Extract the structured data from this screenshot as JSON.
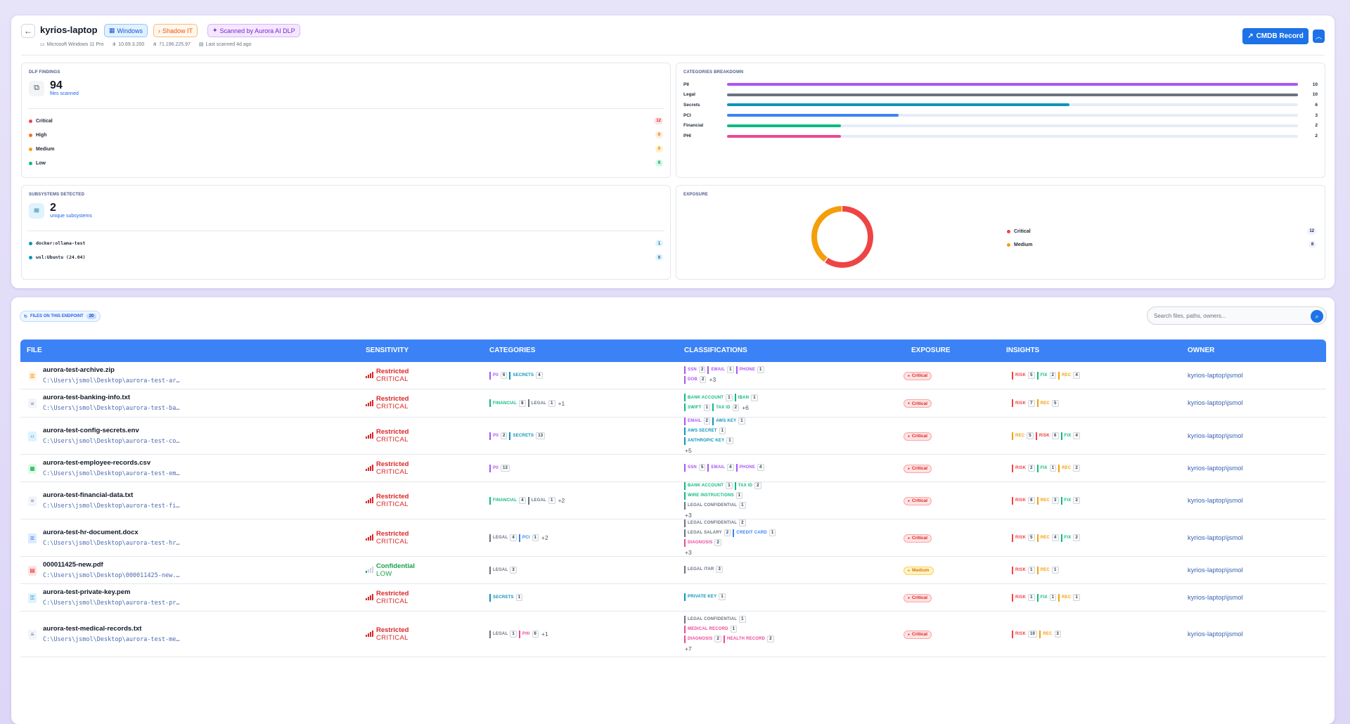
{
  "header": {
    "device_name": "kyrios-laptop",
    "badges": {
      "os": "Windows",
      "shadow": "Shadow IT",
      "scanned": "Scanned by Aurora AI DLP"
    },
    "meta": {
      "os_full": "Microsoft Windows 11 Pro",
      "ip1": "10.69.3.200",
      "ip2": "71.196.225.97",
      "last_scanned": "Last scanned 4d ago"
    },
    "cmdb_label": "CMDB Record"
  },
  "dlp": {
    "title": "DLP FINDINGS",
    "count": "94",
    "sub": "files scanned",
    "rows": [
      {
        "label": "Critical",
        "value": "12",
        "color": "#ef4444"
      },
      {
        "label": "High",
        "value": "0",
        "color": "#f97316"
      },
      {
        "label": "Medium",
        "value": "0",
        "color": "#f59e0b"
      },
      {
        "label": "Low",
        "value": "8",
        "color": "#10b981"
      }
    ]
  },
  "categories": {
    "title": "CATEGORIES BREAKDOWN",
    "max": 10,
    "rows": [
      {
        "label": "PII",
        "value": "10",
        "color": "#a855f7"
      },
      {
        "label": "Legal",
        "value": "10",
        "color": "#6b7280"
      },
      {
        "label": "Secrets",
        "value": "6",
        "color": "#0e95b8"
      },
      {
        "label": "PCI",
        "value": "3",
        "color": "#3b82f6"
      },
      {
        "label": "Financial",
        "value": "2",
        "color": "#10b981"
      },
      {
        "label": "PHI",
        "value": "2",
        "color": "#ec4899"
      }
    ]
  },
  "subsystems": {
    "title": "SUBSYSTEMS DETECTED",
    "count": "2",
    "sub": "unique subsystems",
    "rows": [
      {
        "label": "docker:ollama-test",
        "value": "1"
      },
      {
        "label": "wsl:Ubuntu (24.04)",
        "value": "0"
      }
    ]
  },
  "exposure": {
    "title": "EXPOSURE",
    "segments": [
      {
        "label": "Critical",
        "value": "12",
        "color": "#ef4444"
      },
      {
        "label": "Medium",
        "value": "8",
        "color": "#f59e0b"
      }
    ]
  },
  "files": {
    "badge": "FILES ON THIS ENDPOINT",
    "count": "20",
    "search_placeholder": "Search files, paths, owners...",
    "columns": [
      "FILE",
      "SENSITIVITY",
      "CATEGORIES",
      "CLASSIFICATIONS",
      "EXPOSURE",
      "INSIGHTS",
      "OWNER"
    ],
    "rows": [
      {
        "icon": "archive",
        "name": "aurora-test-archive.zip",
        "path": "C:\\Users\\jsmol\\Desktop\\aurora-test-ar…",
        "level": "Restricted",
        "grade": "CRITICAL",
        "cats": [
          {
            "l": "PII",
            "n": "6"
          },
          {
            "l": "SECRETS",
            "n": "4"
          }
        ],
        "cats_more": "",
        "cls": [
          [
            {
              "l": "SSN",
              "n": "2"
            },
            {
              "l": "EMAIL",
              "n": "1"
            },
            {
              "l": "PHONE",
              "n": "1"
            }
          ],
          [
            {
              "l": "DOB",
              "n": "2"
            }
          ]
        ],
        "cls_more": "+3",
        "exposure": "Critical",
        "insights": [
          {
            "l": "RISK",
            "n": "5"
          },
          {
            "l": "FIX",
            "n": "2"
          },
          {
            "l": "REC",
            "n": "4"
          }
        ],
        "owner": "kyrios-laptop\\jsmol"
      },
      {
        "icon": "text",
        "name": "aurora-test-banking-info.txt",
        "path": "C:\\Users\\jsmol\\Desktop\\aurora-test-ba…",
        "level": "Restricted",
        "grade": "CRITICAL",
        "cats": [
          {
            "l": "FINANCIAL",
            "n": "8"
          },
          {
            "l": "LEGAL",
            "n": "1"
          }
        ],
        "cats_more": "+1",
        "cls": [
          [
            {
              "l": "BANK ACCOUNT",
              "n": "1"
            },
            {
              "l": "IBAN",
              "n": "1"
            }
          ],
          [
            {
              "l": "SWIFT",
              "n": "1"
            },
            {
              "l": "TAX ID",
              "n": "2"
            }
          ]
        ],
        "cls_more": "+6",
        "exposure": "Critical",
        "insights": [
          {
            "l": "RISK",
            "n": "7"
          },
          {
            "l": "REC",
            "n": "5"
          }
        ],
        "owner": "kyrios-laptop\\jsmol"
      },
      {
        "icon": "code",
        "name": "aurora-test-config-secrets.env",
        "path": "C:\\Users\\jsmol\\Desktop\\aurora-test-co…",
        "level": "Restricted",
        "grade": "CRITICAL",
        "cats": [
          {
            "l": "PII",
            "n": "2"
          },
          {
            "l": "SECRETS",
            "n": "13"
          }
        ],
        "cats_more": "",
        "cls": [
          [
            {
              "l": "EMAIL",
              "n": "2"
            },
            {
              "l": "AWS KEY",
              "n": "1"
            }
          ],
          [
            {
              "l": "AWS SECRET",
              "n": "1"
            }
          ],
          [
            {
              "l": "ANTHROPIC KEY",
              "n": "1"
            }
          ]
        ],
        "cls_more": "+5",
        "exposure": "Critical",
        "insights": [
          {
            "l": "REC",
            "n": "5"
          },
          {
            "l": "RISK",
            "n": "6"
          },
          {
            "l": "FIX",
            "n": "4"
          }
        ],
        "owner": "kyrios-laptop\\jsmol"
      },
      {
        "icon": "sheet",
        "name": "aurora-test-employee-records.csv",
        "path": "C:\\Users\\jsmol\\Desktop\\aurora-test-em…",
        "level": "Restricted",
        "grade": "CRITICAL",
        "cats": [
          {
            "l": "PII",
            "n": "13"
          }
        ],
        "cats_more": "",
        "cls": [
          [
            {
              "l": "SSN",
              "n": "5"
            },
            {
              "l": "EMAIL",
              "n": "4"
            },
            {
              "l": "PHONE",
              "n": "4"
            }
          ]
        ],
        "cls_more": "",
        "exposure": "Critical",
        "insights": [
          {
            "l": "RISK",
            "n": "2"
          },
          {
            "l": "FIX",
            "n": "1"
          },
          {
            "l": "REC",
            "n": "2"
          }
        ],
        "owner": "kyrios-laptop\\jsmol"
      },
      {
        "icon": "text",
        "name": "aurora-test-financial-data.txt",
        "path": "C:\\Users\\jsmol\\Desktop\\aurora-test-fi…",
        "level": "Restricted",
        "grade": "CRITICAL",
        "cats": [
          {
            "l": "FINANCIAL",
            "n": "4"
          },
          {
            "l": "LEGAL",
            "n": "1"
          }
        ],
        "cats_more": "+2",
        "cls": [
          [
            {
              "l": "BANK ACCOUNT",
              "n": "1"
            },
            {
              "l": "TAX ID",
              "n": "2"
            }
          ],
          [
            {
              "l": "WIRE INSTRUCTIONS",
              "n": "1"
            }
          ],
          [
            {
              "l": "LEGAL CONFIDENTIAL",
              "n": "1"
            }
          ]
        ],
        "cls_more": "+3",
        "exposure": "Critical",
        "insights": [
          {
            "l": "RISK",
            "n": "6"
          },
          {
            "l": "REC",
            "n": "3"
          },
          {
            "l": "FIX",
            "n": "2"
          }
        ],
        "owner": "kyrios-laptop\\jsmol"
      },
      {
        "icon": "doc",
        "name": "aurora-test-hr-document.docx",
        "path": "C:\\Users\\jsmol\\Desktop\\aurora-test-hr…",
        "level": "Restricted",
        "grade": "CRITICAL",
        "cats": [
          {
            "l": "LEGAL",
            "n": "4"
          },
          {
            "l": "PCI",
            "n": "1"
          }
        ],
        "cats_more": "+2",
        "cls": [
          [
            {
              "l": "LEGAL CONFIDENTIAL",
              "n": "2"
            }
          ],
          [
            {
              "l": "LEGAL SALARY",
              "n": "2"
            },
            {
              "l": "CREDIT CARD",
              "n": "1"
            }
          ],
          [
            {
              "l": "DIAGNOSIS",
              "n": "2"
            }
          ]
        ],
        "cls_more": "+3",
        "exposure": "Critical",
        "insights": [
          {
            "l": "RISK",
            "n": "5"
          },
          {
            "l": "REC",
            "n": "4"
          },
          {
            "l": "FIX",
            "n": "2"
          }
        ],
        "owner": "kyrios-laptop\\jsmol"
      },
      {
        "icon": "pdf",
        "name": "000011425-new.pdf",
        "path": "C:\\Users\\jsmol\\Desktop\\000011425-new.…",
        "level": "Confidential",
        "grade": "LOW",
        "cats": [
          {
            "l": "LEGAL",
            "n": "3"
          }
        ],
        "cats_more": "",
        "cls": [
          [
            {
              "l": "LEGAL ITAR",
              "n": "3"
            }
          ]
        ],
        "cls_more": "",
        "exposure": "Medium",
        "insights": [
          {
            "l": "RISK",
            "n": "1"
          },
          {
            "l": "REC",
            "n": "1"
          }
        ],
        "owner": "kyrios-laptop\\jsmol"
      },
      {
        "icon": "key",
        "name": "aurora-test-private-key.pem",
        "path": "C:\\Users\\jsmol\\Desktop\\aurora-test-pr…",
        "level": "Restricted",
        "grade": "CRITICAL",
        "cats": [
          {
            "l": "SECRETS",
            "n": "1"
          }
        ],
        "cats_more": "",
        "cls": [
          [
            {
              "l": "PRIVATE KEY",
              "n": "1"
            }
          ]
        ],
        "cls_more": "",
        "exposure": "Critical",
        "insights": [
          {
            "l": "RISK",
            "n": "1"
          },
          {
            "l": "FIX",
            "n": "1"
          },
          {
            "l": "REC",
            "n": "1"
          }
        ],
        "owner": "kyrios-laptop\\jsmol"
      },
      {
        "icon": "text",
        "name": "aurora-test-medical-records.txt",
        "path": "C:\\Users\\jsmol\\Desktop\\aurora-test-me…",
        "level": "Restricted",
        "grade": "CRITICAL",
        "cats": [
          {
            "l": "LEGAL",
            "n": "1"
          },
          {
            "l": "PHI",
            "n": "6"
          }
        ],
        "cats_more": "+1",
        "cls": [
          [
            {
              "l": "LEGAL CONFIDENTIAL",
              "n": "1"
            }
          ],
          [
            {
              "l": "MEDICAL RECORD",
              "n": "1"
            }
          ],
          [
            {
              "l": "DIAGNOSIS",
              "n": "2"
            },
            {
              "l": "HEALTH RECORD",
              "n": "2"
            }
          ]
        ],
        "cls_more": "+7",
        "exposure": "Critical",
        "insights": [
          {
            "l": "RISK",
            "n": "10"
          },
          {
            "l": "REC",
            "n": "3"
          }
        ],
        "owner": "kyrios-laptop\\jsmol"
      }
    ]
  }
}
